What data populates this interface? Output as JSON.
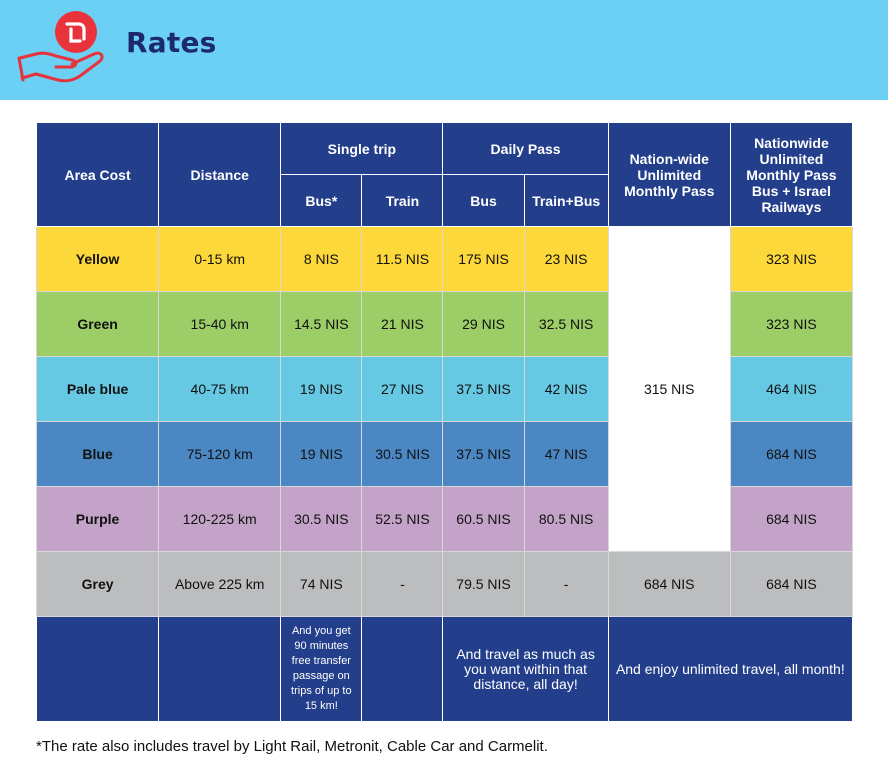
{
  "header": {
    "title": "Rates",
    "logo_icon": "shekel-hand-icon",
    "colors": {
      "banner": "#6ccff4",
      "title": "#1b2a6b",
      "logo_circle": "#e8323c"
    }
  },
  "table": {
    "headers": {
      "area_cost": "Area Cost",
      "distance": "Distance",
      "single_trip": "Single trip",
      "daily_pass": "Daily Pass",
      "nationwide_unlimited": "Nation-wide Unlimited Monthly Pass",
      "nationwide_unlimited_rail": "Nationwide Unlimited Monthly Pass Bus + Israel Railways",
      "bus_star": "Bus*",
      "train": "Train",
      "bus": "Bus",
      "train_bus": "Train+Bus"
    },
    "rows": [
      {
        "area": "Yellow",
        "distance": "0-15 km",
        "single_bus": "8 NIS",
        "single_train": "11.5 NIS",
        "daily_bus": "175 NIS",
        "daily_train_bus": "23 NIS",
        "rail_monthly": "323 NIS",
        "color": "#fdd83a"
      },
      {
        "area": "Green",
        "distance": "15-40 km",
        "single_bus": "14.5 NIS",
        "single_train": "21 NIS",
        "daily_bus": "29 NIS",
        "daily_train_bus": "32.5 NIS",
        "rail_monthly": "323 NIS",
        "color": "#9dcd66"
      },
      {
        "area": "Pale blue",
        "distance": "40-75 km",
        "single_bus": "19 NIS",
        "single_train": "27 NIS",
        "daily_bus": "37.5 NIS",
        "daily_train_bus": "42 NIS",
        "rail_monthly": "464 NIS",
        "color": "#67c8e3"
      },
      {
        "area": "Blue",
        "distance": "75-120 km",
        "single_bus": "19 NIS",
        "single_train": "30.5 NIS",
        "daily_bus": "37.5 NIS",
        "daily_train_bus": "47 NIS",
        "rail_monthly": "684 NIS",
        "color": "#4b87c2"
      },
      {
        "area": "Purple",
        "distance": "120-225 km",
        "single_bus": "30.5 NIS",
        "single_train": "52.5 NIS",
        "daily_bus": "60.5 NIS",
        "daily_train_bus": "80.5 NIS",
        "rail_monthly": "684 NIS",
        "color": "#c4a3c8"
      },
      {
        "area": "Grey",
        "distance": "Above 225 km",
        "single_bus": "74 NIS",
        "single_train": "-",
        "daily_bus": "79.5 NIS",
        "daily_train_bus": "-",
        "monthly": "684 NIS",
        "rail_monthly": "684 NIS",
        "color": "#bbbdbf"
      }
    ],
    "merged_monthly": "315 NIS",
    "footer": {
      "single_trip_note": "And you get 90 minutes free transfer passage on trips of up to 15 km!",
      "daily_pass_note": "And travel as much as you want within that distance, all day!",
      "monthly_note": "And enjoy unlimited travel, all month!"
    }
  },
  "footnote": "*The rate also includes travel by Light Rail, Metronit, Cable Car and Carmelit."
}
